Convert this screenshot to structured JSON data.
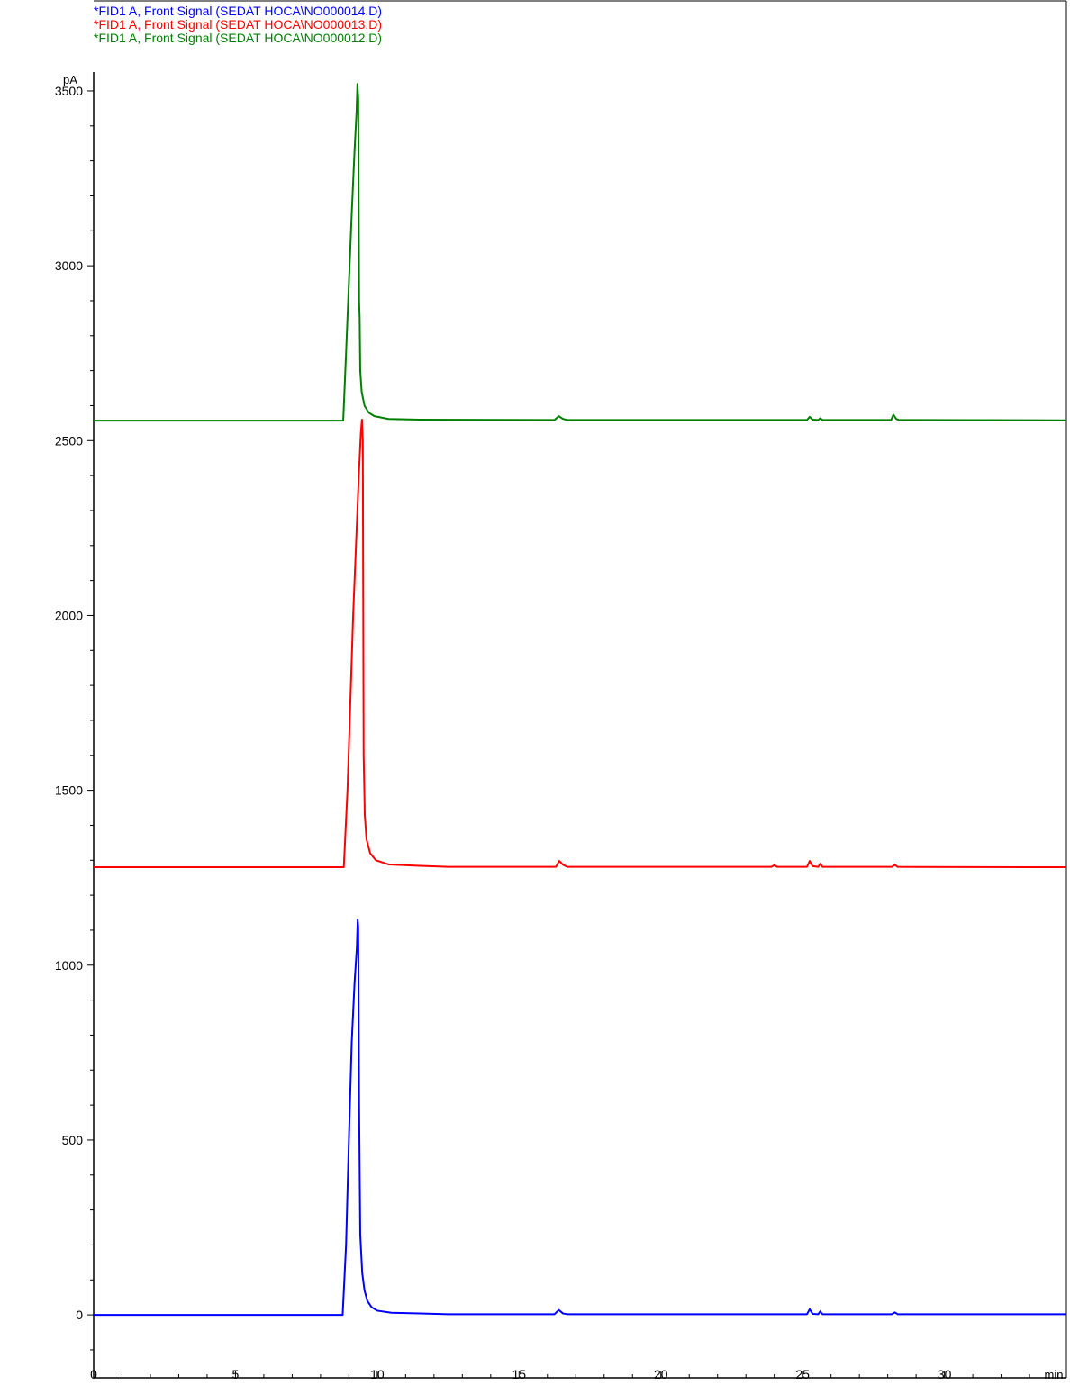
{
  "chart_data": {
    "type": "line",
    "xlabel": "min",
    "ylabel": "pA",
    "xlim": [
      0,
      34.3
    ],
    "ylim": [
      -180,
      3760
    ],
    "x_ticks": [
      0,
      5,
      10,
      15,
      20,
      25,
      30
    ],
    "y_ticks": [
      0,
      500,
      1000,
      1500,
      2000,
      2500,
      3000,
      3500
    ],
    "x_minor_step": 1,
    "y_minor_step": 100,
    "grid": false,
    "legend_placement": "top-left",
    "series": [
      {
        "name": "*FID1 A, Front Signal (SEDAT HOCA\\NO000014.D)",
        "color": "#0000ff",
        "points": [
          [
            0,
            0
          ],
          [
            8.78,
            0
          ],
          [
            8.9,
            200
          ],
          [
            9.0,
            500
          ],
          [
            9.1,
            780
          ],
          [
            9.2,
            950
          ],
          [
            9.28,
            1050
          ],
          [
            9.31,
            1130
          ],
          [
            9.33,
            1110
          ],
          [
            9.36,
            600
          ],
          [
            9.4,
            230
          ],
          [
            9.47,
            120
          ],
          [
            9.55,
            70
          ],
          [
            9.65,
            40
          ],
          [
            9.8,
            22
          ],
          [
            10.0,
            12
          ],
          [
            10.5,
            6
          ],
          [
            11.5,
            4
          ],
          [
            12.5,
            2
          ],
          [
            16.25,
            2
          ],
          [
            16.4,
            14
          ],
          [
            16.55,
            4
          ],
          [
            16.7,
            2
          ],
          [
            25.15,
            2
          ],
          [
            25.25,
            16
          ],
          [
            25.35,
            3
          ],
          [
            25.55,
            2
          ],
          [
            25.62,
            10
          ],
          [
            25.7,
            2
          ],
          [
            28.15,
            2
          ],
          [
            28.25,
            7
          ],
          [
            28.35,
            2
          ],
          [
            34.3,
            2
          ]
        ]
      },
      {
        "name": "*FID1 A, Front Signal (SEDAT HOCA\\NO000013.D)",
        "color": "#ff0000",
        "points": [
          [
            0,
            1280
          ],
          [
            8.82,
            1280
          ],
          [
            8.95,
            1500
          ],
          [
            9.05,
            1750
          ],
          [
            9.15,
            2000
          ],
          [
            9.25,
            2200
          ],
          [
            9.35,
            2400
          ],
          [
            9.42,
            2520
          ],
          [
            9.46,
            2560
          ],
          [
            9.49,
            2500
          ],
          [
            9.52,
            1600
          ],
          [
            9.56,
            1430
          ],
          [
            9.62,
            1360
          ],
          [
            9.75,
            1320
          ],
          [
            9.95,
            1300
          ],
          [
            10.4,
            1288
          ],
          [
            11.5,
            1284
          ],
          [
            12.5,
            1281
          ],
          [
            16.3,
            1281
          ],
          [
            16.42,
            1298
          ],
          [
            16.55,
            1287
          ],
          [
            16.7,
            1281
          ],
          [
            23.9,
            1281
          ],
          [
            24.0,
            1286
          ],
          [
            24.1,
            1281
          ],
          [
            25.15,
            1281
          ],
          [
            25.25,
            1298
          ],
          [
            25.35,
            1283
          ],
          [
            25.55,
            1281
          ],
          [
            25.62,
            1290
          ],
          [
            25.7,
            1281
          ],
          [
            28.15,
            1281
          ],
          [
            28.25,
            1287
          ],
          [
            28.35,
            1281
          ],
          [
            34.3,
            1280
          ]
        ]
      },
      {
        "name": "*FID1 A, Front Signal (SEDAT HOCA\\NO000012.D)",
        "color": "#008000",
        "points": [
          [
            0,
            2557
          ],
          [
            8.8,
            2557
          ],
          [
            8.9,
            2750
          ],
          [
            9.0,
            2950
          ],
          [
            9.1,
            3150
          ],
          [
            9.2,
            3330
          ],
          [
            9.27,
            3440
          ],
          [
            9.3,
            3520
          ],
          [
            9.33,
            3480
          ],
          [
            9.36,
            2900
          ],
          [
            9.38,
            2850
          ],
          [
            9.4,
            2700
          ],
          [
            9.45,
            2640
          ],
          [
            9.55,
            2600
          ],
          [
            9.7,
            2580
          ],
          [
            9.9,
            2570
          ],
          [
            10.4,
            2562
          ],
          [
            11.5,
            2560
          ],
          [
            16.25,
            2559
          ],
          [
            16.4,
            2570
          ],
          [
            16.55,
            2562
          ],
          [
            16.7,
            2559
          ],
          [
            24.0,
            2559
          ],
          [
            25.15,
            2559
          ],
          [
            25.25,
            2568
          ],
          [
            25.35,
            2560
          ],
          [
            25.55,
            2559
          ],
          [
            25.62,
            2564
          ],
          [
            25.7,
            2559
          ],
          [
            28.12,
            2559
          ],
          [
            28.2,
            2574
          ],
          [
            28.3,
            2562
          ],
          [
            28.4,
            2559
          ],
          [
            34.3,
            2558
          ]
        ]
      }
    ]
  }
}
